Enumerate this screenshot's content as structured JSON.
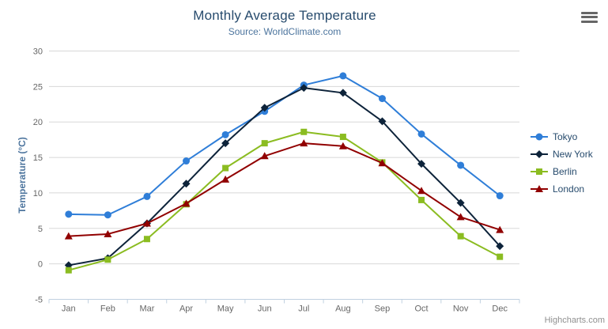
{
  "credits": "Highcharts.com",
  "toolbar": {
    "menu_icon": "hamburger-icon"
  },
  "colors": {
    "title": "#274b6d",
    "subtitle": "#4d759e",
    "axis_label": "#666666",
    "axis_title": "#4d759e",
    "grid_line": "#d8d8d8",
    "axis_line": "#c0d0e0",
    "credits": "#909090",
    "menu_icon": "#666666",
    "legend_text": "#274b6d"
  },
  "chart_data": {
    "type": "line",
    "title": "Monthly Average Temperature",
    "subtitle": "Source: WorldClimate.com",
    "xlabel": "",
    "ylabel": "Temperature (°C)",
    "categories": [
      "Jan",
      "Feb",
      "Mar",
      "Apr",
      "May",
      "Jun",
      "Jul",
      "Aug",
      "Sep",
      "Oct",
      "Nov",
      "Dec"
    ],
    "ylim": [
      -5,
      30
    ],
    "ytick_interval": 5,
    "grid": true,
    "legend_position": "right",
    "series": [
      {
        "name": "Tokyo",
        "color": "#2f7ed8",
        "marker": "circle",
        "values": [
          7.0,
          6.9,
          9.5,
          14.5,
          18.2,
          21.5,
          25.2,
          26.5,
          23.3,
          18.3,
          13.9,
          9.6
        ]
      },
      {
        "name": "New York",
        "color": "#0d233a",
        "marker": "diamond",
        "values": [
          -0.2,
          0.8,
          5.7,
          11.3,
          17.0,
          22.0,
          24.8,
          24.1,
          20.1,
          14.1,
          8.6,
          2.5
        ]
      },
      {
        "name": "Berlin",
        "color": "#8bbc21",
        "marker": "square",
        "values": [
          -0.9,
          0.6,
          3.5,
          8.4,
          13.5,
          17.0,
          18.6,
          17.9,
          14.3,
          9.0,
          3.9,
          1.0
        ]
      },
      {
        "name": "London",
        "color": "#910000",
        "marker": "triangle",
        "values": [
          3.9,
          4.2,
          5.7,
          8.5,
          11.9,
          15.2,
          17.0,
          16.6,
          14.2,
          10.3,
          6.6,
          4.8
        ]
      }
    ]
  }
}
